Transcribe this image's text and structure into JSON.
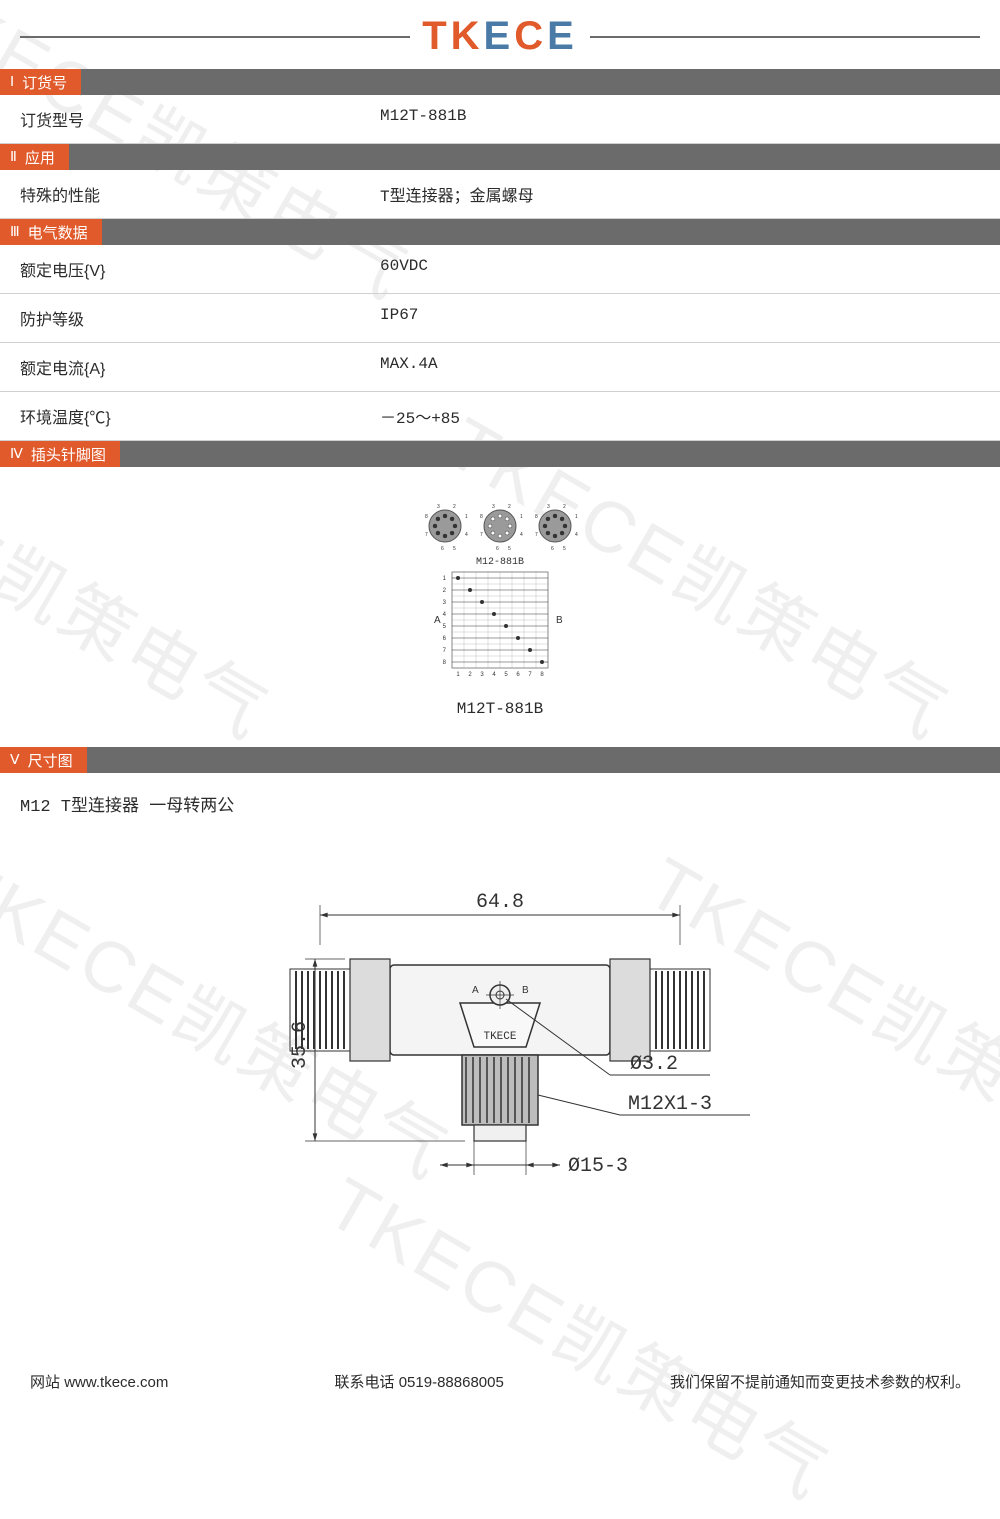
{
  "logo": {
    "text": "TKECE",
    "color_primary": "#e05a2b",
    "color_secondary": "#4a7ba6"
  },
  "watermark_text": "TKECE凯策电气",
  "sections": {
    "s1": {
      "num": "Ⅰ",
      "title": "订货号"
    },
    "s2": {
      "num": "Ⅱ",
      "title": "应用"
    },
    "s3": {
      "num": "Ⅲ",
      "title": "电气数据"
    },
    "s4": {
      "num": "Ⅳ",
      "title": "插头针脚图"
    },
    "s5": {
      "num": "Ⅴ",
      "title": "尺寸图"
    }
  },
  "order": {
    "label": "订货型号",
    "value": "M12T-881B"
  },
  "app": {
    "label": "特殊的性能",
    "value": "T型连接器；金属螺母"
  },
  "elec": {
    "r1": {
      "label": "额定电压{V}",
      "value": "60VDC"
    },
    "r2": {
      "label": "防护等级",
      "value": "IP67"
    },
    "r3": {
      "label": "额定电流{A}",
      "value": "MAX.4A"
    },
    "r4": {
      "label": "环境温度{℃}",
      "value": "－25～+85"
    }
  },
  "pinout": {
    "top_label": "M12-881B",
    "caption": "M12T-881B",
    "side_a": "A",
    "side_b": "B",
    "pin_count": 8,
    "pins": [
      "1",
      "2",
      "3",
      "4",
      "5",
      "6",
      "7",
      "8"
    ],
    "circle_fill": "#9a9a9a",
    "circle_stroke": "#555555"
  },
  "dimensions": {
    "title": "M12 T型连接器 一母转两公",
    "width": "64.8",
    "height": "35.6",
    "hole_dia": "Ø3.2",
    "thread": "M12X1-3",
    "bottom_dia": "Ø15-3",
    "brand": "TKECE",
    "mark_a": "A",
    "mark_b": "B",
    "stroke": "#333333",
    "fill": "#e8e8e8"
  },
  "footer": {
    "website_label": "网站",
    "website": "www.tkece.com",
    "phone_label": "联系电话",
    "phone": "0519-88868005",
    "notice": "我们保留不提前通知而变更技术参数的权利。"
  },
  "colors": {
    "bar_bg": "#6b6b6b",
    "tag_bg": "#e05a2b",
    "text": "#2b2b2b",
    "divider": "#d0d0d0"
  }
}
